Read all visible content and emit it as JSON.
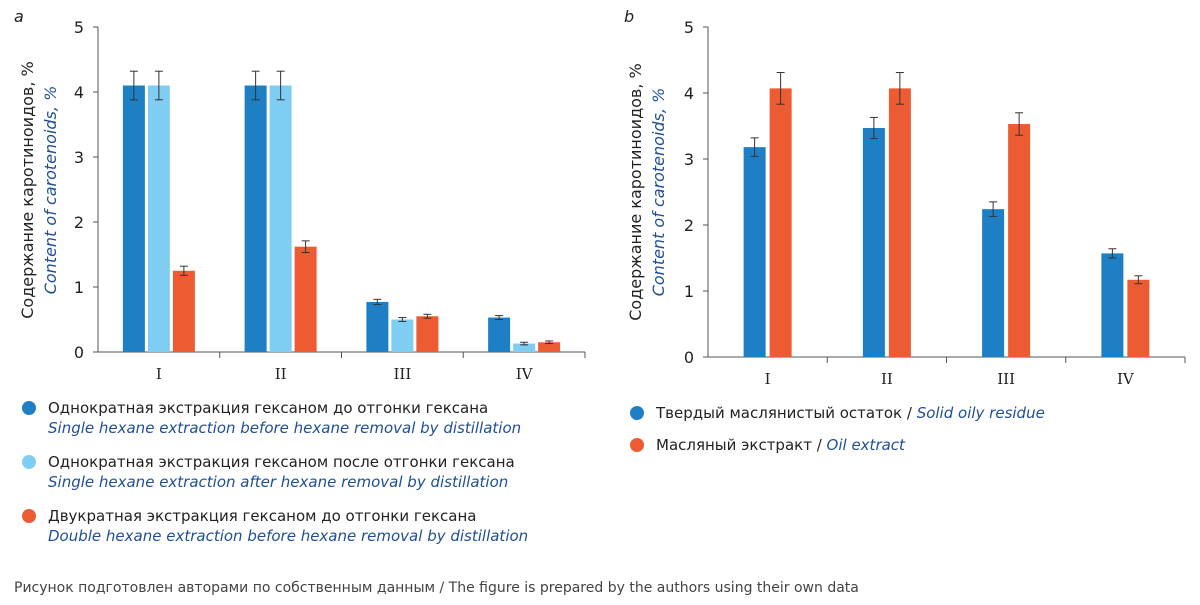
{
  "panels": {
    "a": {
      "letter": "a",
      "ylabel_ru": "Содержание каротиноидов, %",
      "ylabel_en": "Content of carotenoids, %"
    },
    "b": {
      "letter": "b",
      "ylabel_ru": "Содержание каротиноидов, %",
      "ylabel_en": "Content of carotenoids, %"
    }
  },
  "legend_a": [
    {
      "ru": "Однократная экстракция гексаном до отгонки гексана",
      "en": "Single hexane extraction before hexane removal by distillation",
      "color": "#1f7fc4"
    },
    {
      "ru": "Однократная экстракция гексаном после отгонки гексана",
      "en": "Single hexane extraction after hexane removal by distillation",
      "color": "#7fcdf2"
    },
    {
      "ru": "Двукратная экстракция гексаном до отгонки гексана",
      "en": "Double hexane extraction before hexane removal by distillation",
      "color": "#ec5b32"
    }
  ],
  "legend_b": [
    {
      "ru": "Твердый маслянистый остаток",
      "en": "Solid oily residue",
      "color": "#1f7fc4"
    },
    {
      "ru": "Масляный экстракт",
      "en": "Oil extract",
      "color": "#ec5b32"
    }
  ],
  "footer": "Рисунок подготовлен авторами по собственным данным / The figure is prepared by the authors using their own data",
  "chart_data": [
    {
      "type": "bar",
      "panel": "a",
      "categories": [
        "I",
        "II",
        "III",
        "IV"
      ],
      "ylim": [
        0,
        5
      ],
      "yticks": [
        0,
        1,
        2,
        3,
        4,
        5
      ],
      "ylabel": "Содержание каротиноидов, % / Content of carotenoids, %",
      "series": [
        {
          "name": "Однократная экстракция гексаном до отгонки гексана / Single hexane extraction before hexane removal by distillation",
          "color": "#1f7fc4",
          "values": [
            4.1,
            4.1,
            0.77,
            0.53
          ],
          "errors": [
            0.22,
            0.22,
            0.04,
            0.03
          ]
        },
        {
          "name": "Однократная экстракция гексаном после отгонки гексана / Single hexane extraction after hexane removal by distillation",
          "color": "#7fcdf2",
          "values": [
            4.1,
            4.1,
            0.5,
            0.13
          ],
          "errors": [
            0.22,
            0.22,
            0.03,
            0.02
          ]
        },
        {
          "name": "Двукратная экстракция гексаном до отгонки гексана / Double hexane extraction before hexane removal by distillation",
          "color": "#ec5b32",
          "values": [
            1.25,
            1.62,
            0.55,
            0.15
          ],
          "errors": [
            0.07,
            0.09,
            0.03,
            0.02
          ]
        }
      ]
    },
    {
      "type": "bar",
      "panel": "b",
      "categories": [
        "I",
        "II",
        "III",
        "IV"
      ],
      "ylim": [
        0,
        5
      ],
      "yticks": [
        0,
        1,
        2,
        3,
        4,
        5
      ],
      "ylabel": "Содержание каротиноидов, % / Content of carotenoids, %",
      "series": [
        {
          "name": "Твердый маслянистый остаток / Solid oily residue",
          "color": "#1f7fc4",
          "values": [
            3.18,
            3.47,
            2.24,
            1.57
          ],
          "errors": [
            0.14,
            0.16,
            0.11,
            0.07
          ]
        },
        {
          "name": "Масляный экстракт / Oil extract",
          "color": "#ec5b32",
          "values": [
            4.07,
            4.07,
            3.53,
            1.17
          ],
          "errors": [
            0.24,
            0.24,
            0.17,
            0.06
          ]
        }
      ]
    }
  ]
}
